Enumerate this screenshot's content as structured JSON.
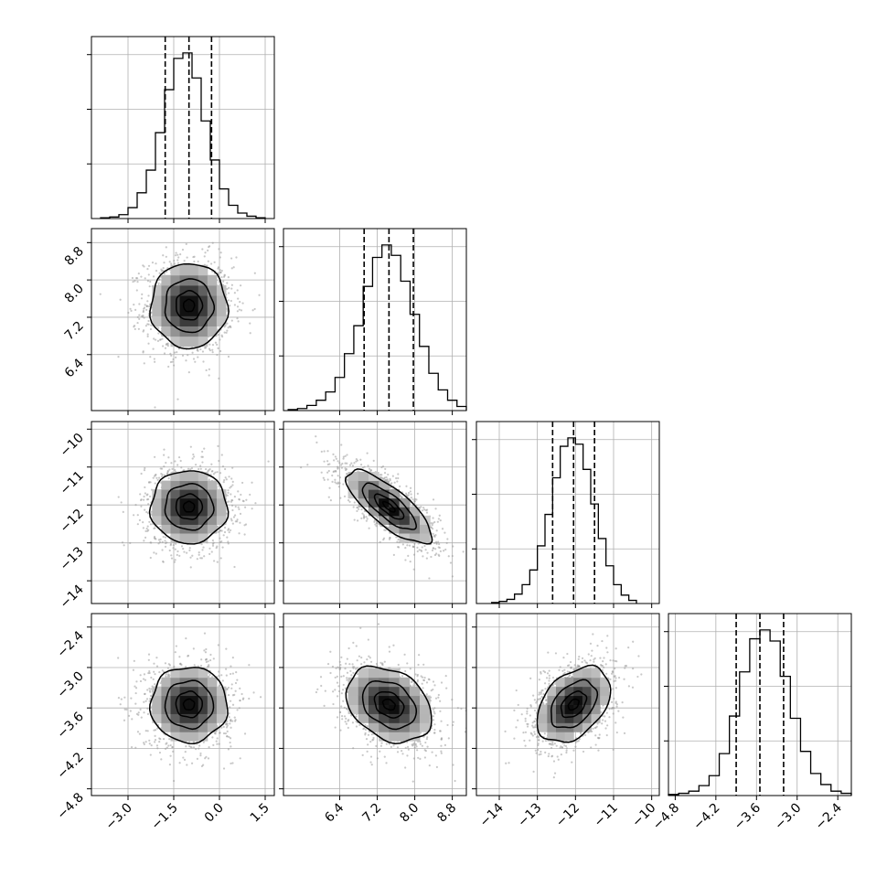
{
  "chart_data": {
    "type": "corner",
    "title": "",
    "n_params": 4,
    "grid": true,
    "quantile_lines": "dashed",
    "contour_levels": 4,
    "params": [
      {
        "label": "",
        "range": [
          -4.2,
          1.8
        ],
        "ticks": [
          -3.0,
          -1.5,
          0.0,
          1.5
        ],
        "tick_labels": [
          "−3.0",
          "−1.5",
          "0.0",
          "1.5"
        ],
        "mean": -1.0,
        "sd": 0.72,
        "quantiles": [
          -1.78,
          -1.0,
          -0.26
        ],
        "hist_bins": [
          -3.9,
          -3.6,
          -3.3,
          -3.0,
          -2.7,
          -2.4,
          -2.1,
          -1.8,
          -1.5,
          -1.2,
          -0.9,
          -0.6,
          -0.3,
          0.0,
          0.3,
          0.6,
          0.9,
          1.2,
          1.5
        ],
        "hist_counts": [
          1,
          2,
          5,
          14,
          33,
          62,
          110,
          165,
          205,
          212,
          180,
          125,
          75,
          38,
          17,
          7,
          3,
          1
        ]
      },
      {
        "label": "",
        "range": [
          5.2,
          9.1
        ],
        "ticks": [
          6.4,
          7.2,
          8.0,
          8.8
        ],
        "tick_labels": [
          "6.4",
          "7.2",
          "8.0",
          "8.8"
        ],
        "mean": 7.45,
        "sd": 0.52,
        "quantiles": [
          6.92,
          7.45,
          7.97
        ],
        "hist_bins": [
          5.3,
          5.5,
          5.7,
          5.9,
          6.1,
          6.3,
          6.5,
          6.7,
          6.9,
          7.1,
          7.3,
          7.5,
          7.7,
          7.9,
          8.1,
          8.3,
          8.5,
          8.7,
          8.9,
          9.1
        ],
        "hist_counts": [
          1,
          2,
          5,
          10,
          18,
          32,
          55,
          82,
          120,
          148,
          160,
          150,
          125,
          93,
          62,
          36,
          20,
          10,
          4
        ]
      },
      {
        "label": "",
        "range": [
          -14.6,
          -9.8
        ],
        "ticks": [
          -14,
          -13,
          -12,
          -11,
          -10
        ],
        "tick_labels": [
          "−14",
          "−13",
          "−12",
          "−11",
          "−10"
        ],
        "mean": -12.05,
        "sd": 0.55,
        "quantiles": [
          -12.6,
          -12.05,
          -11.5
        ],
        "hist_bins": [
          -14.2,
          -14.0,
          -13.8,
          -13.6,
          -13.4,
          -13.2,
          -13.0,
          -12.8,
          -12.6,
          -12.4,
          -12.2,
          -12.0,
          -11.8,
          -11.6,
          -11.4,
          -11.2,
          -11.0,
          -10.8,
          -10.6,
          -10.4
        ],
        "hist_counts": [
          1,
          2,
          4,
          9,
          18,
          32,
          55,
          85,
          120,
          150,
          158,
          152,
          128,
          95,
          62,
          36,
          18,
          8,
          3
        ]
      },
      {
        "label": "",
        "range": [
          -4.9,
          -2.2
        ],
        "ticks": [
          -4.8,
          -4.2,
          -3.6,
          -3.0,
          -2.4
        ],
        "tick_labels": [
          "−4.8",
          "−4.2",
          "−3.6",
          "−3.0",
          "−2.4"
        ],
        "mean": -3.55,
        "sd": 0.32,
        "quantiles": [
          -3.9,
          -3.55,
          -3.2
        ],
        "hist_bins": [
          -4.9,
          -4.75,
          -4.6,
          -4.45,
          -4.3,
          -4.15,
          -4.0,
          -3.85,
          -3.7,
          -3.55,
          -3.4,
          -3.25,
          -3.1,
          -2.95,
          -2.8,
          -2.65,
          -2.5,
          -2.35,
          -2.2
        ],
        "hist_counts": [
          1,
          2,
          4,
          9,
          18,
          38,
          72,
          112,
          142,
          150,
          140,
          108,
          70,
          40,
          20,
          10,
          4,
          2
        ]
      }
    ],
    "correlations": {
      "1,0": 0.0,
      "2,0": 0.0,
      "3,0": 0.0,
      "2,1": -0.78,
      "3,1": -0.3,
      "3,2": 0.4
    }
  }
}
